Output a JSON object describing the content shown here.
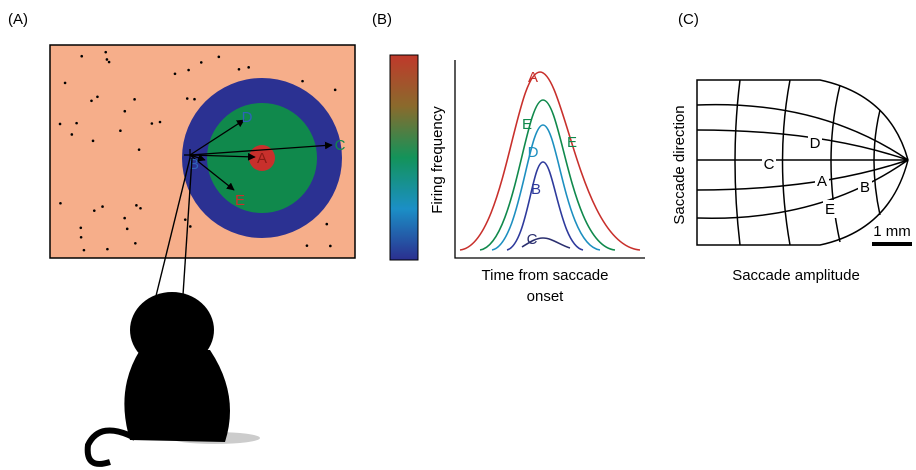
{
  "panels": [
    {
      "label": "(A)",
      "targets": [
        "A",
        "B",
        "C",
        "D",
        "E"
      ]
    },
    {
      "label": "(B)",
      "y_label": "Firing frequency",
      "x_label": [
        "Time from saccade",
        "onset"
      ],
      "curve_labels": [
        "A",
        "E",
        "E",
        "D",
        "B",
        "C"
      ]
    },
    {
      "label": "(C)",
      "y_label": "Saccade direction",
      "x_label": "Saccade amplitude",
      "scale_bar": "1 mm",
      "sites": [
        "D",
        "C",
        "A",
        "B",
        "E"
      ]
    }
  ]
}
